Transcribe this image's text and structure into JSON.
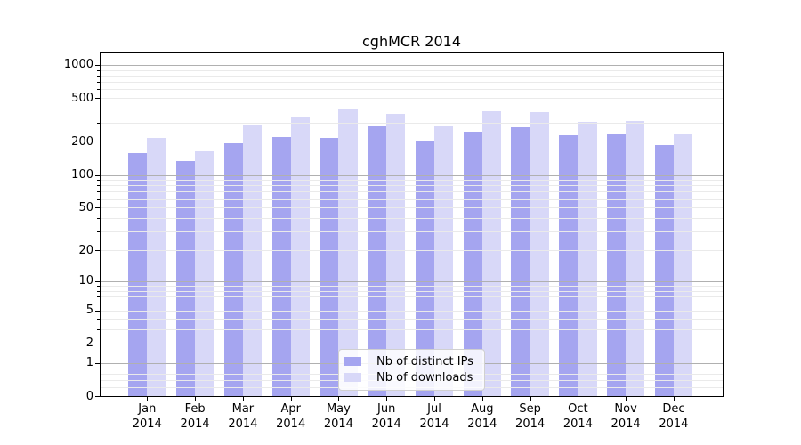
{
  "chart_data": {
    "type": "bar",
    "title": "cghMCR 2014",
    "categories": [
      "Jan",
      "Feb",
      "Mar",
      "Apr",
      "May",
      "Jun",
      "Jul",
      "Aug",
      "Sep",
      "Oct",
      "Nov",
      "Dec"
    ],
    "year": "2014",
    "series": [
      {
        "name": "Nb of distinct IPs",
        "color": "#a5a5f0",
        "values": [
          157,
          134,
          195,
          222,
          217,
          278,
          206,
          248,
          272,
          230,
          237,
          188
        ]
      },
      {
        "name": "Nb of downloads",
        "color": "#d8d8f8",
        "values": [
          219,
          165,
          284,
          331,
          392,
          357,
          277,
          377,
          373,
          304,
          311,
          235
        ]
      }
    ],
    "y_axis": {
      "scale": "log1p",
      "ticks": [
        0,
        1,
        2,
        5,
        10,
        20,
        50,
        100,
        200,
        500,
        1000
      ],
      "ylim": [
        0,
        1300
      ],
      "grid": "horizontal, major gridlines at 1/10/100/1000, light minor gridlines between"
    },
    "legend_position": "inside bottom-center",
    "colors": {
      "major_grid": "#b0b0b0",
      "minor_grid": "#eaeaea",
      "spine": "#000000",
      "text": "#000000"
    }
  }
}
